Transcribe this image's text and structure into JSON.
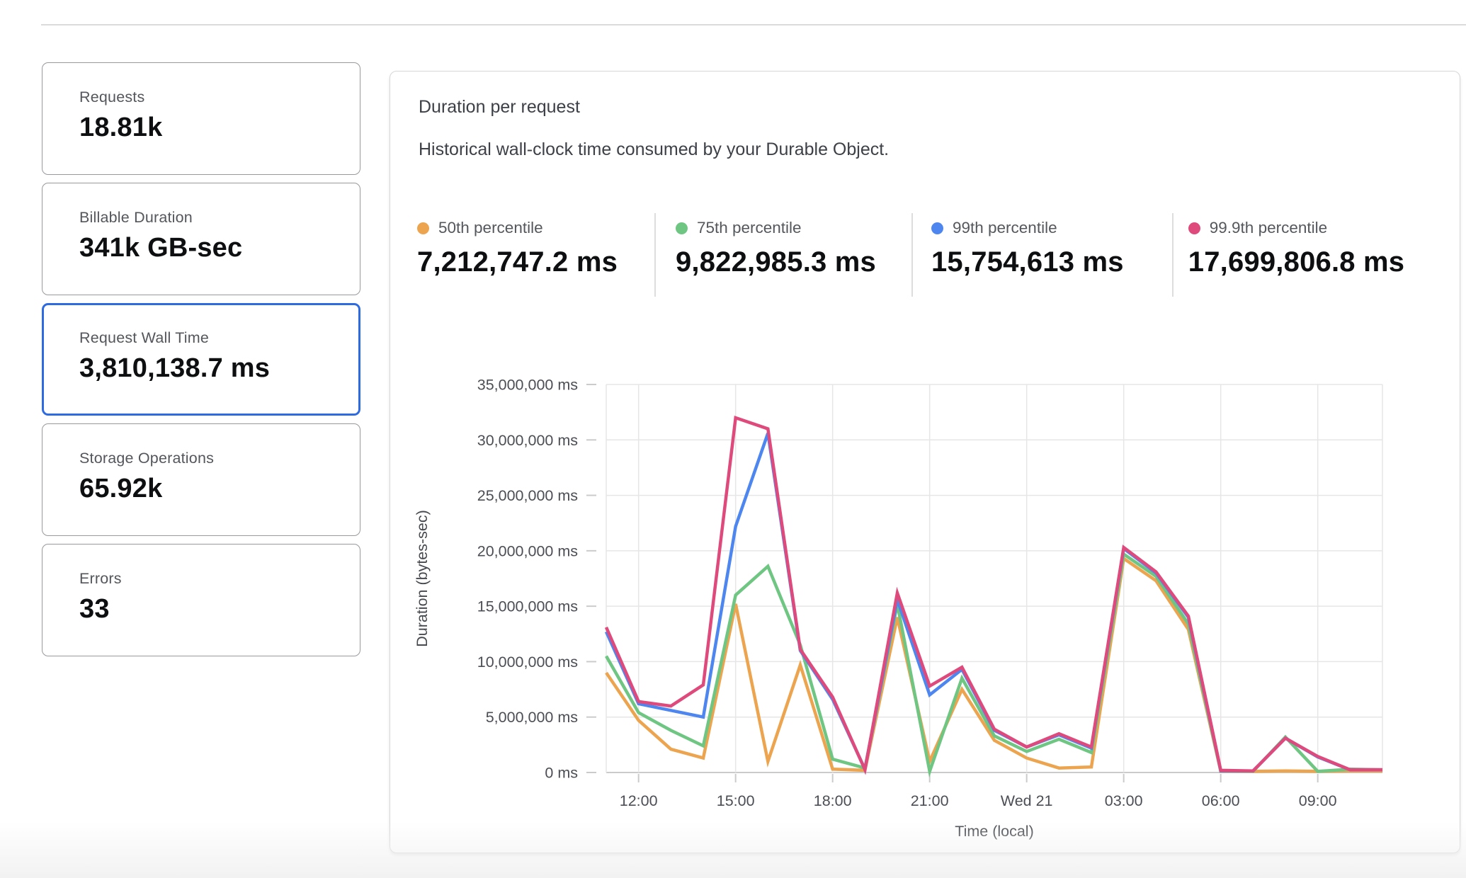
{
  "ui": {
    "accent_blue": "#2F6BE0",
    "card_border": "#97999D",
    "grid_color": "#E6E6E6",
    "axis_color": "#CBCBCB"
  },
  "stat_cards": [
    {
      "label": "Requests",
      "value": "18.81k",
      "selected": false
    },
    {
      "label": "Billable Duration",
      "value": "341k GB-sec",
      "selected": false
    },
    {
      "label": "Request Wall Time",
      "value": "3,810,138.7 ms",
      "selected": true
    },
    {
      "label": "Storage Operations",
      "value": "65.92k",
      "selected": false
    },
    {
      "label": "Errors",
      "value": "33",
      "selected": false
    }
  ],
  "panel": {
    "title": "Duration per request",
    "subtitle": "Historical wall-clock time consumed by your Durable Object.",
    "legend": [
      {
        "label": "50th percentile",
        "value": "7,212,747.2 ms",
        "color": "#ECA44F"
      },
      {
        "label": "75th percentile",
        "value": "9,822,985.3 ms",
        "color": "#6EC682"
      },
      {
        "label": "99th percentile",
        "value": "15,754,613 ms",
        "color": "#4E86F0"
      },
      {
        "label": "99.9th percentile",
        "value": "17,699,806.8 ms",
        "color": "#DF4A7D"
      }
    ]
  },
  "chart_data": {
    "type": "line",
    "title": "Duration per request",
    "xlabel": "Time (local)",
    "ylabel": "Duration (bytes-sec)",
    "unit": "ms",
    "ylim": [
      0,
      35000000
    ],
    "y_tick_step": 5000000,
    "grid": true,
    "legend_position": "top",
    "categories": [
      "11:00",
      "12:00",
      "13:00",
      "14:00",
      "15:00",
      "16:00",
      "17:00",
      "18:00",
      "19:00",
      "20:00",
      "21:00",
      "22:00",
      "23:00",
      "Wed 21",
      "01:00",
      "02:00",
      "03:00",
      "04:00",
      "05:00",
      "06:00",
      "07:00",
      "08:00",
      "09:00",
      "10:00",
      "11:00"
    ],
    "x_tick_indices": [
      1,
      4,
      7,
      10,
      13,
      16,
      19,
      22
    ],
    "x_tick_labels": [
      "12:00",
      "15:00",
      "18:00",
      "21:00",
      "Wed 21",
      "03:00",
      "06:00",
      "09:00"
    ],
    "series": [
      {
        "name": "50th percentile",
        "color": "#ECA44F",
        "values": [
          9000000,
          4700000,
          2100000,
          1300000,
          15200000,
          1000000,
          9700000,
          300000,
          200000,
          14000000,
          1000000,
          7500000,
          2900000,
          1300000,
          400000,
          500000,
          19300000,
          17300000,
          12900000,
          100000,
          100000,
          150000,
          100000,
          150000,
          150000
        ]
      },
      {
        "name": "75th percentile",
        "color": "#6EC682",
        "values": [
          10500000,
          5400000,
          3800000,
          2400000,
          16000000,
          18600000,
          11500000,
          1200000,
          400000,
          15200000,
          100000,
          8500000,
          3300000,
          1900000,
          3000000,
          1800000,
          19700000,
          17700000,
          13400000,
          150000,
          100000,
          3200000,
          100000,
          300000,
          250000
        ]
      },
      {
        "name": "99th percentile",
        "color": "#4E86F0",
        "values": [
          12700000,
          6200000,
          5600000,
          5000000,
          22200000,
          30600000,
          11000000,
          6600000,
          300000,
          15600000,
          7000000,
          9300000,
          3800000,
          2300000,
          3400000,
          2200000,
          20200000,
          18000000,
          14000000,
          150000,
          150000,
          3100000,
          1400000,
          250000,
          250000
        ]
      },
      {
        "name": "99.9th percentile",
        "color": "#DF4A7D",
        "values": [
          13100000,
          6400000,
          6000000,
          7900000,
          32000000,
          31000000,
          11100000,
          6800000,
          250000,
          16200000,
          7800000,
          9500000,
          3900000,
          2300000,
          3500000,
          2300000,
          20300000,
          18100000,
          14100000,
          200000,
          150000,
          3100000,
          1450000,
          250000,
          250000
        ]
      }
    ]
  }
}
